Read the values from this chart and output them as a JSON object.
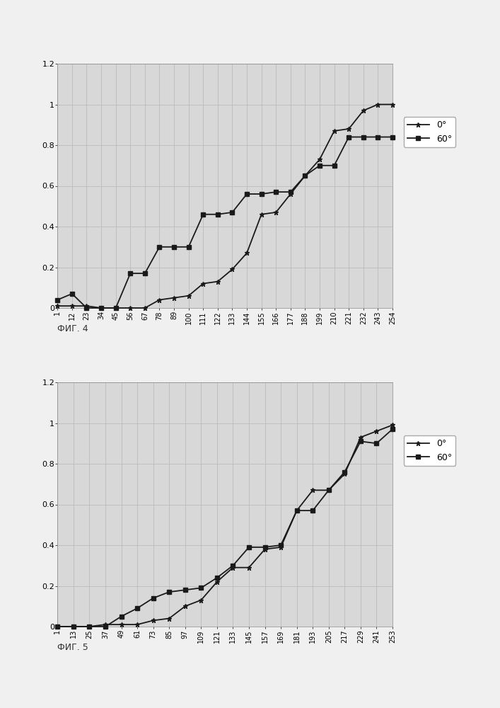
{
  "fig4": {
    "x_ticks": [
      1,
      12,
      23,
      34,
      45,
      56,
      67,
      78,
      89,
      100,
      111,
      122,
      133,
      144,
      155,
      166,
      177,
      188,
      199,
      210,
      221,
      232,
      243,
      254
    ],
    "line0_x": [
      1,
      12,
      23,
      34,
      45,
      56,
      67,
      78,
      89,
      100,
      111,
      122,
      133,
      144,
      155,
      166,
      177,
      188,
      199,
      210,
      221,
      232,
      243,
      254
    ],
    "line0_y": [
      0.01,
      0.01,
      0.01,
      0.0,
      0.0,
      0.0,
      0.0,
      0.04,
      0.05,
      0.06,
      0.12,
      0.13,
      0.19,
      0.27,
      0.46,
      0.47,
      0.56,
      0.65,
      0.73,
      0.87,
      0.88,
      0.97,
      1.0,
      1.0
    ],
    "line60_x": [
      1,
      12,
      23,
      34,
      45,
      56,
      67,
      78,
      89,
      100,
      111,
      122,
      133,
      144,
      155,
      166,
      177,
      188,
      199,
      210,
      221,
      232,
      243,
      254
    ],
    "line60_y": [
      0.04,
      0.07,
      0.0,
      0.0,
      0.0,
      0.17,
      0.17,
      0.3,
      0.3,
      0.3,
      0.46,
      0.46,
      0.47,
      0.56,
      0.56,
      0.57,
      0.57,
      0.65,
      0.7,
      0.7,
      0.84,
      0.84,
      0.84,
      0.84
    ],
    "ylim": [
      0,
      1.2
    ],
    "yticks": [
      0,
      0.2,
      0.4,
      0.6,
      0.8,
      1.0,
      1.2
    ],
    "ytick_labels": [
      "0",
      "0.2",
      "0.4",
      "0.6",
      "0.8",
      "1",
      "1.2"
    ],
    "label0": "0°",
    "label60": "60°",
    "caption": "ФИГ. 4"
  },
  "fig5": {
    "x_ticks": [
      1,
      13,
      25,
      37,
      49,
      61,
      73,
      85,
      97,
      109,
      121,
      133,
      145,
      157,
      169,
      181,
      193,
      205,
      217,
      229,
      241,
      253
    ],
    "line0_x": [
      1,
      13,
      25,
      37,
      49,
      61,
      73,
      85,
      97,
      109,
      121,
      133,
      145,
      157,
      169,
      181,
      193,
      205,
      217,
      229,
      241,
      253
    ],
    "line0_y": [
      0.0,
      0.0,
      0.0,
      0.01,
      0.01,
      0.01,
      0.03,
      0.04,
      0.1,
      0.13,
      0.22,
      0.29,
      0.29,
      0.38,
      0.39,
      0.57,
      0.67,
      0.67,
      0.75,
      0.93,
      0.96,
      0.99
    ],
    "line60_x": [
      1,
      13,
      25,
      37,
      49,
      61,
      73,
      85,
      97,
      109,
      121,
      133,
      145,
      157,
      169,
      181,
      193,
      205,
      217,
      229,
      241,
      253
    ],
    "line60_y": [
      0.0,
      0.0,
      0.0,
      0.0,
      0.05,
      0.09,
      0.14,
      0.17,
      0.18,
      0.19,
      0.24,
      0.3,
      0.39,
      0.39,
      0.4,
      0.57,
      0.57,
      0.67,
      0.76,
      0.91,
      0.9,
      0.97
    ],
    "ylim": [
      0,
      1.2
    ],
    "yticks": [
      0,
      0.2,
      0.4,
      0.6,
      0.8,
      1.0,
      1.2
    ],
    "ytick_labels": [
      "0",
      "0.2",
      "0.4",
      "0.6",
      "0.8",
      "1",
      "1.2"
    ],
    "label0": "0°",
    "label60": "60°",
    "caption": "ФИГ. 5"
  },
  "bg_color": "#f0f0f0",
  "plot_bg": "#d8d8d8",
  "line_color": "#1a1a1a",
  "grid_color": "#bbbbbb",
  "marker_star": "*",
  "marker_square": "s",
  "marker_size": 5,
  "line_width": 1.3,
  "font_size_tick": 7,
  "font_size_legend": 9,
  "font_size_caption": 9
}
